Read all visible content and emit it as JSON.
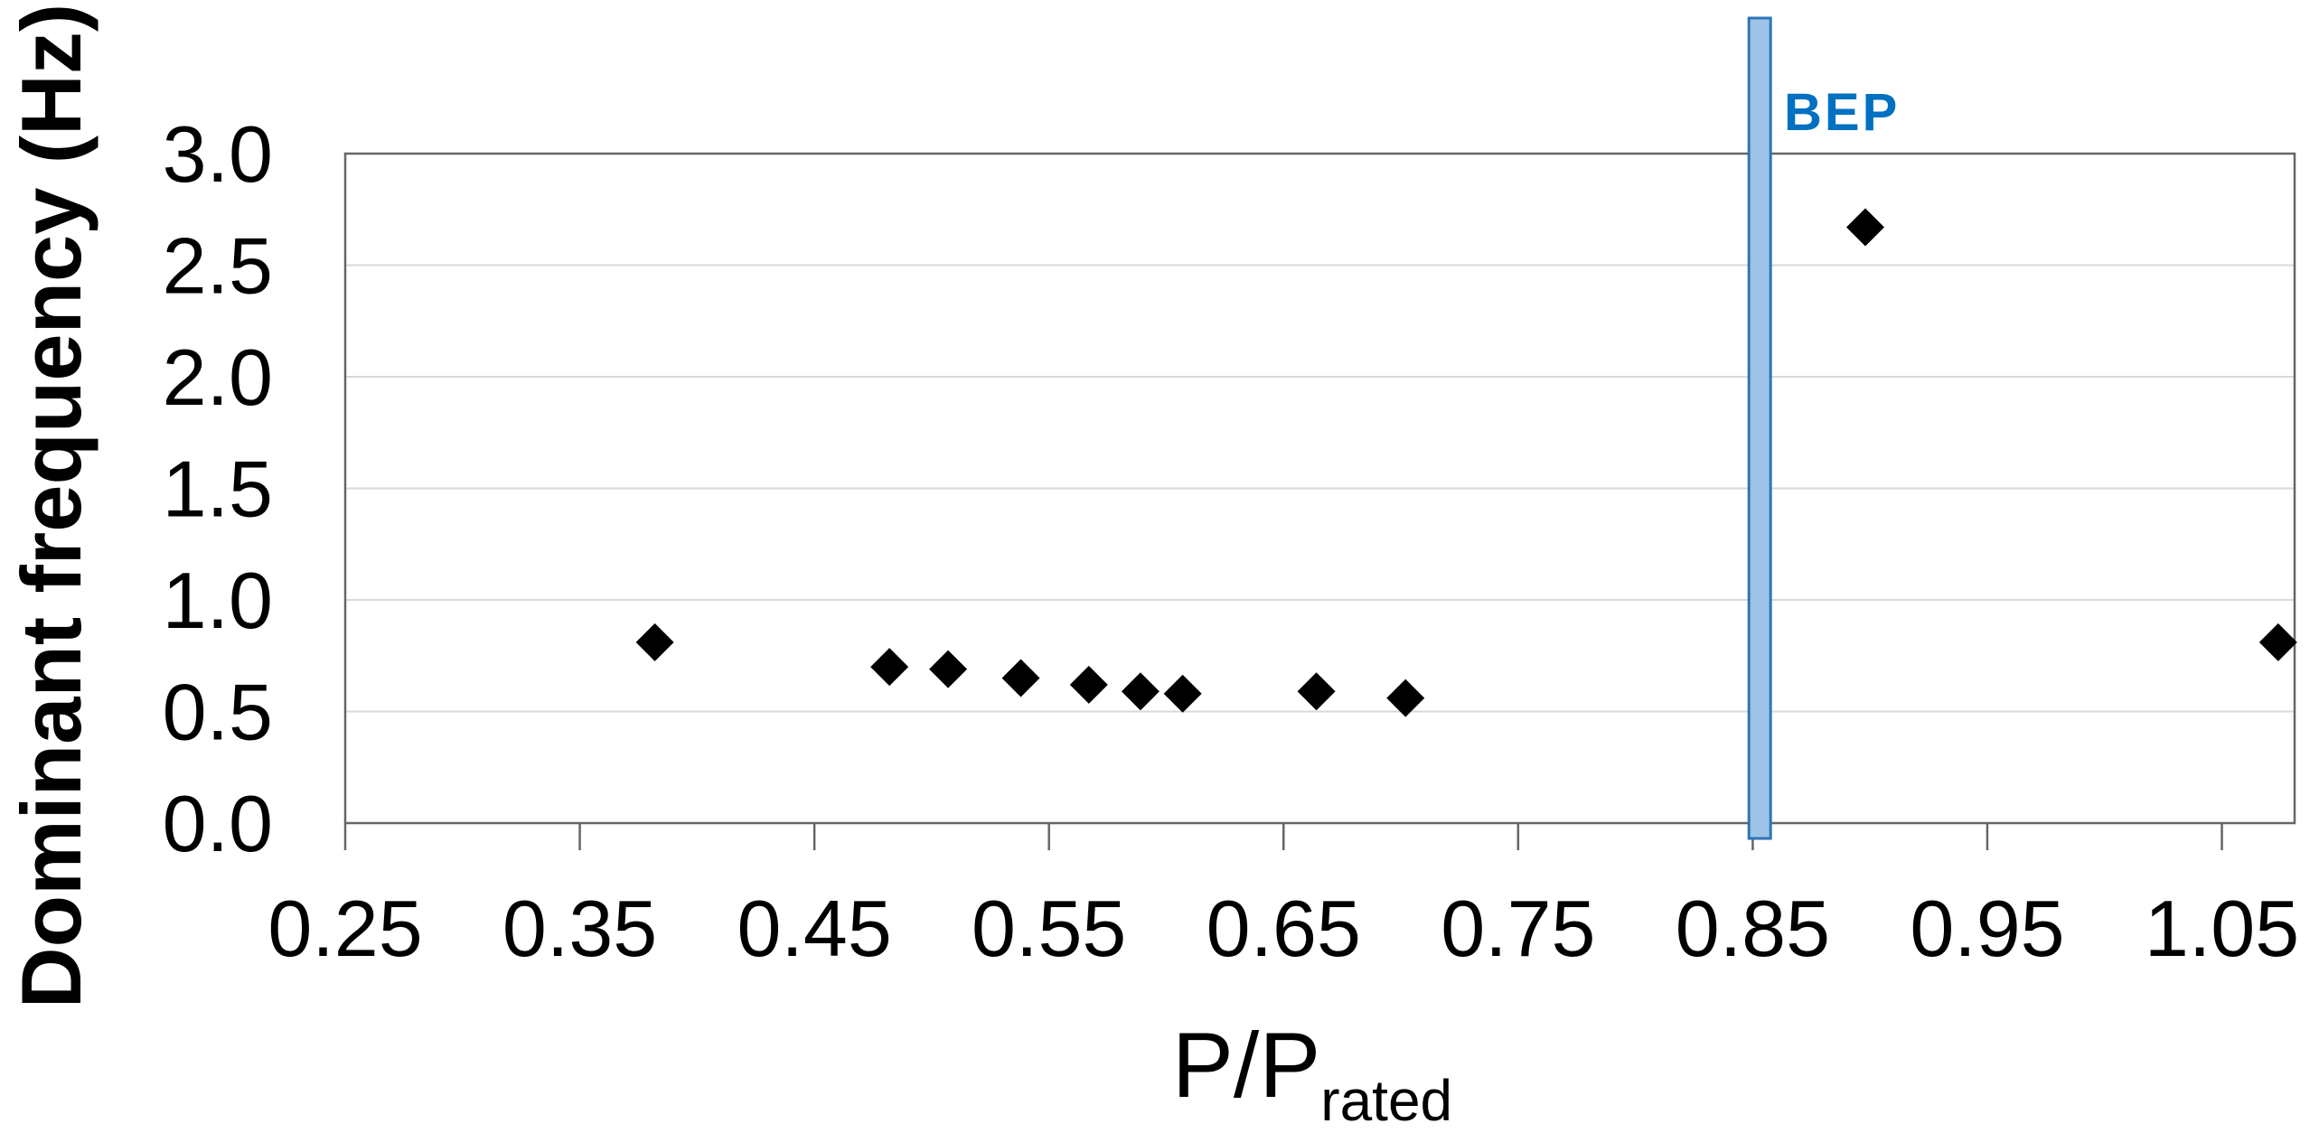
{
  "chart_data": {
    "type": "scatter",
    "title": "",
    "xlabel_main": "P/P",
    "xlabel_sub": "rated",
    "ylabel": "Dominant frequency (Hz)",
    "xlim": [
      0.25,
      1.081
    ],
    "ylim": [
      0.0,
      3.0
    ],
    "x_ticks": [
      0.25,
      0.35,
      0.45,
      0.55,
      0.65,
      0.75,
      0.85,
      0.95,
      1.05
    ],
    "x_tick_labels": [
      "0.25",
      "0.35",
      "0.45",
      "0.55",
      "0.65",
      "0.75",
      "0.85",
      "0.95",
      "1.05"
    ],
    "y_ticks": [
      0.0,
      0.5,
      1.0,
      1.5,
      2.0,
      2.5,
      3.0
    ],
    "y_tick_labels": [
      "0.0",
      "0.5",
      "1.0",
      "1.5",
      "2.0",
      "2.5",
      "3.0"
    ],
    "grid": "horizontal",
    "legend": "none",
    "series": [
      {
        "name": "dominant-frequency",
        "marker": "diamond",
        "color": "#000000",
        "points": [
          [
            0.382,
            0.81
          ],
          [
            0.482,
            0.7
          ],
          [
            0.507,
            0.69
          ],
          [
            0.538,
            0.65
          ],
          [
            0.567,
            0.62
          ],
          [
            0.589,
            0.59
          ],
          [
            0.607,
            0.58
          ],
          [
            0.664,
            0.59
          ],
          [
            0.702,
            0.56
          ],
          [
            0.898,
            2.67
          ],
          [
            1.074,
            0.81
          ]
        ]
      }
    ],
    "annotation": {
      "label": "BEP",
      "type": "vertical-bar",
      "x": 0.853,
      "bar_fill": "#9DC3E6",
      "bar_border": "#2E75B6",
      "label_color": "#0070C0"
    },
    "colors": {
      "plot_border": "#666666",
      "gridline": "#D9D9D9",
      "tick": "#666666",
      "marker": "#000000",
      "background": "#FFFFFF"
    }
  }
}
